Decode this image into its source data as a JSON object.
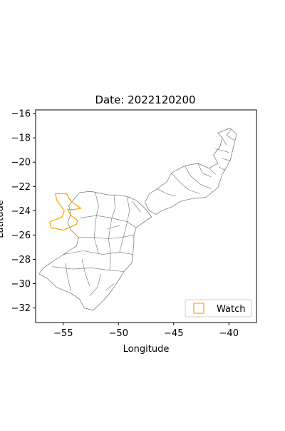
{
  "title": "Date: 2022120200",
  "xlabel": "Longitude",
  "ylabel": "Latitude",
  "legend": {
    "label": "Watch",
    "placement": "lower-right"
  },
  "colors": {
    "region_outline": "#6e6e6e",
    "watch_outline": "#ffa500",
    "axes": "#000000",
    "background": "#ffffff"
  },
  "chart_data": {
    "type": "map",
    "title": "Date: 2022120200",
    "xlabel": "Longitude",
    "ylabel": "Latitude",
    "xlim": [
      -57.5,
      -37.5
    ],
    "ylim": [
      -33.2,
      -15.7
    ],
    "xticks": [
      -55,
      -50,
      -45,
      -40
    ],
    "yticks": [
      -16,
      -18,
      -20,
      -22,
      -24,
      -26,
      -28,
      -30,
      -32
    ],
    "grid": false,
    "legend_placement": "lower-right",
    "series": [
      {
        "name": "Watch",
        "color": "#ffa500",
        "style": "outline"
      }
    ],
    "regions": {
      "south": [
        [
          -53.5,
          -22.5
        ],
        [
          -52.5,
          -22.4
        ],
        [
          -51.5,
          -22.6
        ],
        [
          -50.8,
          -22.7
        ],
        [
          -49.8,
          -22.7
        ],
        [
          -49.0,
          -22.9
        ],
        [
          -48.3,
          -23.2
        ],
        [
          -47.6,
          -23.8
        ],
        [
          -47.0,
          -24.5
        ],
        [
          -47.8,
          -25.0
        ],
        [
          -48.4,
          -25.4
        ],
        [
          -48.6,
          -26.0
        ],
        [
          -48.6,
          -26.7
        ],
        [
          -48.7,
          -27.6
        ],
        [
          -48.8,
          -28.3
        ],
        [
          -49.5,
          -29.0
        ],
        [
          -50.1,
          -29.9
        ],
        [
          -50.8,
          -30.8
        ],
        [
          -51.6,
          -31.6
        ],
        [
          -52.3,
          -32.2
        ],
        [
          -53.1,
          -32.0
        ],
        [
          -53.5,
          -31.3
        ],
        [
          -54.3,
          -30.8
        ],
        [
          -55.6,
          -30.3
        ],
        [
          -56.4,
          -29.6
        ],
        [
          -57.2,
          -29.2
        ],
        [
          -56.8,
          -28.7
        ],
        [
          -56.0,
          -28.2
        ],
        [
          -55.3,
          -27.8
        ],
        [
          -54.5,
          -27.3
        ],
        [
          -53.8,
          -26.9
        ],
        [
          -53.6,
          -26.2
        ],
        [
          -54.3,
          -25.6
        ],
        [
          -54.6,
          -25.0
        ],
        [
          -54.3,
          -24.2
        ],
        [
          -54.5,
          -23.6
        ],
        [
          -54.0,
          -23.0
        ]
      ],
      "southeast": [
        [
          -44.0,
          -20.3
        ],
        [
          -42.8,
          -20.1
        ],
        [
          -41.8,
          -20.5
        ],
        [
          -41.0,
          -20.1
        ],
        [
          -41.4,
          -19.4
        ],
        [
          -40.8,
          -18.7
        ],
        [
          -40.6,
          -18.0
        ],
        [
          -41.0,
          -17.6
        ],
        [
          -39.9,
          -17.2
        ],
        [
          -39.3,
          -17.7
        ],
        [
          -39.6,
          -18.8
        ],
        [
          -39.9,
          -19.9
        ],
        [
          -40.6,
          -21.0
        ],
        [
          -41.0,
          -22.1
        ],
        [
          -42.1,
          -22.9
        ],
        [
          -43.3,
          -23.0
        ],
        [
          -44.3,
          -23.2
        ],
        [
          -45.2,
          -23.7
        ],
        [
          -46.1,
          -24.0
        ],
        [
          -46.6,
          -24.3
        ],
        [
          -47.2,
          -24.0
        ],
        [
          -47.6,
          -23.3
        ],
        [
          -47.2,
          -22.6
        ],
        [
          -46.5,
          -22.2
        ],
        [
          -45.6,
          -21.6
        ],
        [
          -45.2,
          -20.9
        ]
      ],
      "internal_lines_south": [
        [
          [
            -53.5,
            -24.6
          ],
          [
            -52.0,
            -24.4
          ],
          [
            -50.6,
            -24.6
          ],
          [
            -49.2,
            -24.9
          ],
          [
            -48.4,
            -25.4
          ]
        ],
        [
          [
            -53.6,
            -26.2
          ],
          [
            -52.2,
            -26.2
          ],
          [
            -51.0,
            -26.3
          ],
          [
            -49.8,
            -26.2
          ],
          [
            -48.6,
            -26.0
          ]
        ],
        [
          [
            -55.0,
            -27.6
          ],
          [
            -53.2,
            -27.3
          ],
          [
            -51.4,
            -27.6
          ],
          [
            -49.9,
            -27.4
          ],
          [
            -48.7,
            -27.6
          ]
        ],
        [
          [
            -56.0,
            -28.6
          ],
          [
            -54.2,
            -28.8
          ],
          [
            -52.4,
            -28.7
          ],
          [
            -50.8,
            -28.9
          ],
          [
            -49.5,
            -29.0
          ]
        ],
        [
          [
            -52.1,
            -22.5
          ],
          [
            -51.8,
            -23.6
          ],
          [
            -52.0,
            -24.4
          ],
          [
            -52.2,
            -26.2
          ],
          [
            -51.8,
            -27.5
          ]
        ],
        [
          [
            -50.4,
            -22.7
          ],
          [
            -50.3,
            -23.8
          ],
          [
            -50.6,
            -24.6
          ],
          [
            -50.9,
            -26.3
          ],
          [
            -50.7,
            -27.6
          ],
          [
            -50.8,
            -28.9
          ]
        ],
        [
          [
            -49.2,
            -22.9
          ],
          [
            -49.0,
            -24.0
          ],
          [
            -49.2,
            -24.9
          ],
          [
            -49.5,
            -26.0
          ],
          [
            -49.9,
            -27.4
          ]
        ],
        [
          [
            -53.3,
            -28.0
          ],
          [
            -53.0,
            -29.2
          ],
          [
            -52.6,
            -30.2
          ]
        ],
        [
          [
            -54.8,
            -28.3
          ],
          [
            -54.6,
            -29.5
          ],
          [
            -54.3,
            -30.6
          ]
        ],
        [
          [
            -51.6,
            -29.2
          ],
          [
            -51.9,
            -30.3
          ],
          [
            -52.6,
            -31.0
          ]
        ],
        [
          [
            -50.4,
            -30.0
          ],
          [
            -51.2,
            -30.6
          ]
        ],
        [
          [
            -48.8,
            -23.2
          ],
          [
            -48.0,
            -24.1
          ]
        ],
        [
          [
            -51.0,
            -25.5
          ],
          [
            -49.9,
            -25.2
          ]
        ]
      ],
      "internal_lines_southeast": [
        [
          [
            -44.0,
            -20.3
          ],
          [
            -43.5,
            -21.1
          ],
          [
            -42.6,
            -21.8
          ],
          [
            -41.6,
            -22.2
          ]
        ],
        [
          [
            -42.8,
            -20.1
          ],
          [
            -42.4,
            -20.9
          ],
          [
            -41.6,
            -21.2
          ]
        ],
        [
          [
            -41.8,
            -20.5
          ],
          [
            -41.2,
            -21.0
          ]
        ],
        [
          [
            -45.2,
            -20.9
          ],
          [
            -44.4,
            -21.7
          ],
          [
            -43.6,
            -22.3
          ],
          [
            -42.6,
            -22.6
          ]
        ],
        [
          [
            -46.5,
            -22.2
          ],
          [
            -45.6,
            -22.6
          ],
          [
            -44.8,
            -22.8
          ]
        ],
        [
          [
            -40.6,
            -18.0
          ],
          [
            -40.2,
            -18.6
          ]
        ],
        [
          [
            -41.2,
            -18.9
          ],
          [
            -40.0,
            -19.2
          ]
        ],
        [
          [
            -40.6,
            -19.7
          ],
          [
            -39.8,
            -19.9
          ]
        ],
        [
          [
            -40.9,
            -20.4
          ],
          [
            -40.3,
            -20.7
          ]
        ],
        [
          [
            -39.8,
            -17.3
          ],
          [
            -40.2,
            -17.8
          ],
          [
            -39.5,
            -18.2
          ]
        ]
      ],
      "watch": [
        [
          -55.7,
          -22.6
        ],
        [
          -54.7,
          -22.6
        ],
        [
          -54.4,
          -23.1
        ],
        [
          -53.9,
          -23.5
        ],
        [
          -53.4,
          -23.8
        ],
        [
          -54.0,
          -23.9
        ],
        [
          -54.6,
          -23.9
        ],
        [
          -54.3,
          -24.4
        ],
        [
          -53.7,
          -24.8
        ],
        [
          -53.8,
          -25.1
        ],
        [
          -54.5,
          -25.4
        ],
        [
          -55.0,
          -25.6
        ],
        [
          -55.5,
          -25.5
        ],
        [
          -56.1,
          -25.4
        ],
        [
          -56.2,
          -24.9
        ],
        [
          -55.6,
          -24.7
        ],
        [
          -55.1,
          -24.5
        ],
        [
          -54.9,
          -24.0
        ],
        [
          -55.3,
          -23.5
        ],
        [
          -55.6,
          -23.1
        ]
      ]
    }
  }
}
